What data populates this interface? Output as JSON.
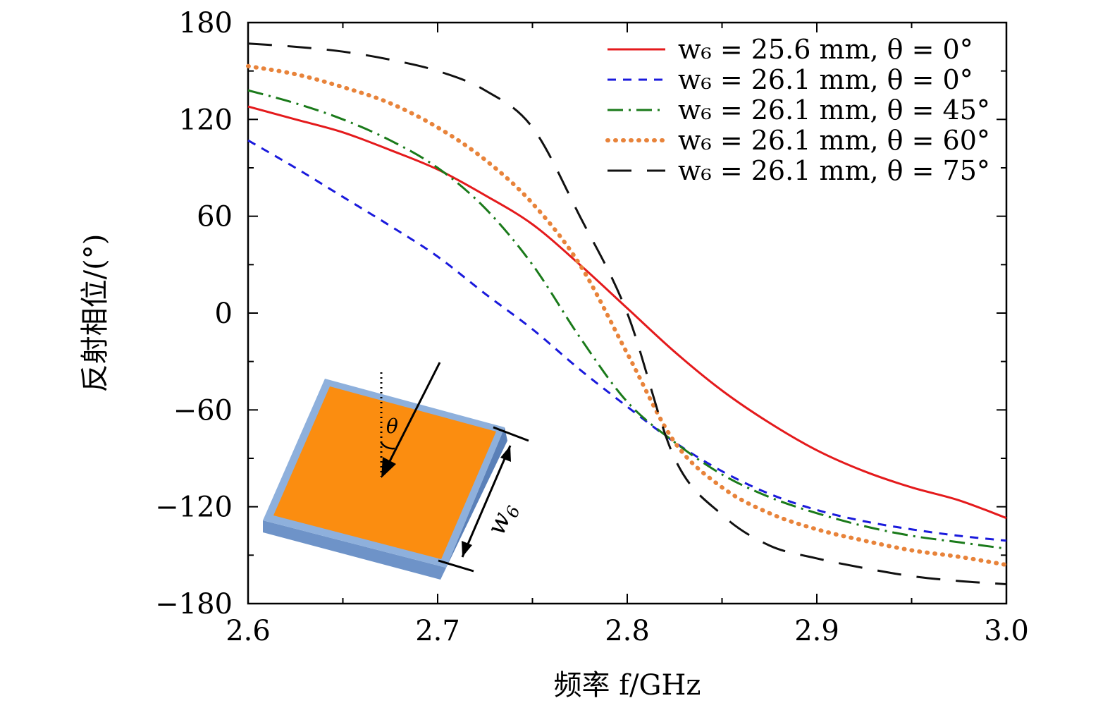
{
  "chart_data": {
    "type": "line",
    "title": "",
    "xlabel": "频率 f/GHz",
    "ylabel": "反射相位/(°)",
    "xlim": [
      2.6,
      3.0
    ],
    "ylim": [
      -180,
      180
    ],
    "xticks": [
      2.6,
      2.7,
      2.8,
      2.9,
      3.0
    ],
    "xtick_labels": [
      "2.6",
      "2.7",
      "2.8",
      "2.9",
      "3.0"
    ],
    "yticks": [
      180,
      120,
      60,
      0,
      -60,
      -120,
      -180
    ],
    "ytick_labels": [
      "180",
      "120",
      "60",
      "0",
      "−60",
      "−120",
      "−180"
    ],
    "grid": false,
    "legend_position": "top-right",
    "series": [
      {
        "name": "w6 = 25.6 mm, θ = 0°",
        "label": "w₆ = 25.6 mm, θ = 0°",
        "color": "#e41a1c",
        "style": "solid",
        "x": [
          2.6,
          2.625,
          2.65,
          2.675,
          2.7,
          2.725,
          2.75,
          2.775,
          2.8,
          2.825,
          2.85,
          2.875,
          2.9,
          2.925,
          2.95,
          2.975,
          3.0
        ],
        "y": [
          128,
          120,
          112,
          101,
          89,
          73,
          55,
          30,
          3,
          -24,
          -48,
          -68,
          -85,
          -98,
          -108,
          -116,
          -127
        ]
      },
      {
        "name": "w6 = 26.1 mm, θ = 0°",
        "label": "w₆ = 26.1 mm, θ = 0°",
        "color": "#1a1adc",
        "style": "dashed",
        "x": [
          2.6,
          2.625,
          2.65,
          2.675,
          2.7,
          2.725,
          2.75,
          2.775,
          2.8,
          2.825,
          2.85,
          2.875,
          2.9,
          2.925,
          2.95,
          2.975,
          3.0
        ],
        "y": [
          107,
          90,
          72,
          54,
          35,
          12,
          -10,
          -35,
          -58,
          -80,
          -98,
          -112,
          -122,
          -129,
          -134,
          -138,
          -141
        ]
      },
      {
        "name": "w6 = 26.1 mm, θ = 45°",
        "label": "w₆ = 26.1 mm, θ = 45°",
        "color": "#1a7a1a",
        "style": "dashdot",
        "x": [
          2.6,
          2.625,
          2.65,
          2.675,
          2.7,
          2.725,
          2.75,
          2.775,
          2.8,
          2.825,
          2.85,
          2.875,
          2.9,
          2.925,
          2.95,
          2.975,
          3.0
        ],
        "y": [
          138,
          130,
          120,
          107,
          90,
          65,
          30,
          -15,
          -55,
          -80,
          -100,
          -114,
          -124,
          -132,
          -138,
          -142,
          -146
        ]
      },
      {
        "name": "w6 = 26.1 mm, θ = 60°",
        "label": "w₆ = 26.1 mm, θ = 60°",
        "color": "#e8833a",
        "style": "dotted",
        "x": [
          2.6,
          2.625,
          2.65,
          2.675,
          2.7,
          2.725,
          2.75,
          2.775,
          2.8,
          2.825,
          2.85,
          2.875,
          2.9,
          2.925,
          2.95,
          2.975,
          3.0
        ],
        "y": [
          153,
          148,
          140,
          130,
          115,
          95,
          68,
          30,
          -25,
          -80,
          -108,
          -124,
          -134,
          -141,
          -147,
          -151,
          -156
        ]
      },
      {
        "name": "w6 = 26.1 mm, θ = 75°",
        "label": "w₆ = 26.1 mm, θ = 75°",
        "color": "#111111",
        "style": "longdash",
        "x": [
          2.6,
          2.625,
          2.65,
          2.675,
          2.7,
          2.725,
          2.75,
          2.775,
          2.8,
          2.825,
          2.85,
          2.875,
          2.9,
          2.925,
          2.95,
          2.975,
          3.0
        ],
        "y": [
          167,
          165,
          162,
          157,
          150,
          138,
          115,
          60,
          0,
          -90,
          -125,
          -144,
          -152,
          -158,
          -163,
          -166,
          -168
        ]
      }
    ]
  },
  "inset": {
    "theta_label": "θ",
    "w_label": "w6"
  }
}
